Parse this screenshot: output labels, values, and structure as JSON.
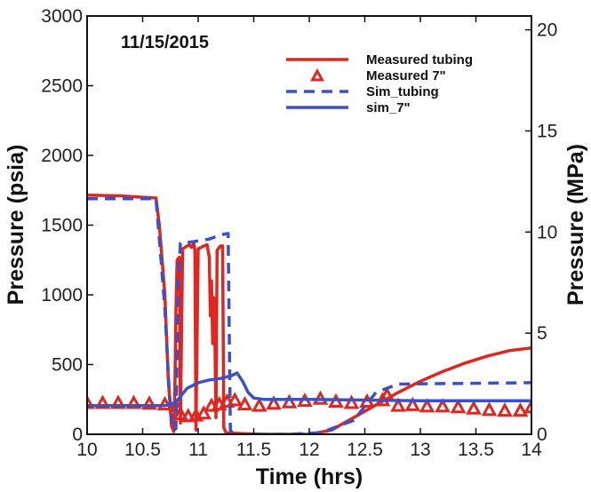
{
  "chart_data": {
    "type": "line",
    "annotation": "11/15/2015",
    "xlabel": "Time (hrs)",
    "ylabel": "Pressure (psia)",
    "y2label": "Pressure (MPa)",
    "xlim": [
      10,
      14
    ],
    "ylim": [
      0,
      3000
    ],
    "y2lim": [
      0,
      20.684
    ],
    "x_ticks": [
      "10",
      "10.5",
      "11",
      "11.5",
      "12",
      "12.5",
      "13",
      "13.5",
      "14"
    ],
    "y_ticks": [
      "0",
      "500",
      "1000",
      "1500",
      "2000",
      "2500",
      "3000"
    ],
    "y2_ticks": [
      "0",
      "5",
      "10",
      "15",
      "20"
    ],
    "legend_position": "top-right",
    "colors": {
      "red": "#e0261e",
      "blue": "#3c50c8"
    },
    "series": [
      {
        "name": "Measured tubing",
        "style": "solid",
        "color": "#e0261e",
        "points": [
          [
            10,
            1715
          ],
          [
            10.3,
            1710
          ],
          [
            10.5,
            1700
          ],
          [
            10.62,
            1695
          ],
          [
            10.65,
            1500
          ],
          [
            10.7,
            1000
          ],
          [
            10.73,
            400
          ],
          [
            10.76,
            60
          ],
          [
            10.78,
            20
          ],
          [
            10.79,
            300
          ],
          [
            10.8,
            900
          ],
          [
            10.81,
            1250
          ],
          [
            10.83,
            1270
          ],
          [
            10.84,
            80
          ],
          [
            10.86,
            1330
          ],
          [
            10.9,
            1350
          ],
          [
            10.92,
            1360
          ],
          [
            10.94,
            1340
          ],
          [
            10.96,
            1370
          ],
          [
            10.97,
            1320
          ],
          [
            10.98,
            30
          ],
          [
            11.0,
            1330
          ],
          [
            11.05,
            1350
          ],
          [
            11.08,
            1360
          ],
          [
            11.1,
            1270
          ],
          [
            11.11,
            850
          ],
          [
            11.12,
            1100
          ],
          [
            11.13,
            650
          ],
          [
            11.14,
            980
          ],
          [
            11.15,
            700
          ],
          [
            11.16,
            120
          ],
          [
            11.17,
            1320
          ],
          [
            11.2,
            1350
          ],
          [
            11.22,
            1350
          ],
          [
            11.23,
            50
          ],
          [
            11.25,
            10
          ],
          [
            11.4,
            5
          ],
          [
            11.6,
            0
          ],
          [
            12.0,
            0
          ],
          [
            12.2,
            30
          ],
          [
            12.4,
            120
          ],
          [
            12.6,
            210
          ],
          [
            12.8,
            300
          ],
          [
            13.0,
            380
          ],
          [
            13.2,
            450
          ],
          [
            13.4,
            510
          ],
          [
            13.6,
            560
          ],
          [
            13.8,
            600
          ],
          [
            14.0,
            620
          ]
        ]
      },
      {
        "name": "Measured 7\"",
        "style": "triangle",
        "color": "#e0261e",
        "points": [
          [
            10,
            220
          ],
          [
            10.14,
            220
          ],
          [
            10.28,
            220
          ],
          [
            10.42,
            220
          ],
          [
            10.56,
            215
          ],
          [
            10.7,
            210
          ],
          [
            10.8,
            195
          ],
          [
            10.84,
            140
          ],
          [
            10.91,
            125
          ],
          [
            10.98,
            130
          ],
          [
            11.05,
            145
          ],
          [
            11.12,
            200
          ],
          [
            11.19,
            210
          ],
          [
            11.26,
            230
          ],
          [
            11.33,
            240
          ],
          [
            11.42,
            210
          ],
          [
            11.55,
            200
          ],
          [
            11.68,
            215
          ],
          [
            11.82,
            225
          ],
          [
            11.96,
            235
          ],
          [
            12.1,
            250
          ],
          [
            12.24,
            230
          ],
          [
            12.38,
            220
          ],
          [
            12.52,
            230
          ],
          [
            12.66,
            240
          ],
          [
            12.7,
            275
          ],
          [
            12.8,
            200
          ],
          [
            12.93,
            205
          ],
          [
            13.06,
            195
          ],
          [
            13.2,
            195
          ],
          [
            13.34,
            190
          ],
          [
            13.48,
            180
          ],
          [
            13.62,
            170
          ],
          [
            13.76,
            165
          ],
          [
            13.9,
            165
          ],
          [
            14.0,
            190
          ]
        ]
      },
      {
        "name": "Sim_tubing",
        "style": "dashed",
        "color": "#3c50c8",
        "points": [
          [
            10,
            1690
          ],
          [
            10.3,
            1690
          ],
          [
            10.62,
            1690
          ],
          [
            10.65,
            1400
          ],
          [
            10.7,
            900
          ],
          [
            10.74,
            300
          ],
          [
            10.77,
            30
          ],
          [
            10.8,
            40
          ],
          [
            10.82,
            1100
          ],
          [
            10.84,
            1370
          ],
          [
            10.95,
            1380
          ],
          [
            11.1,
            1400
          ],
          [
            11.2,
            1430
          ],
          [
            11.27,
            1440
          ],
          [
            11.29,
            30
          ],
          [
            11.32,
            0
          ],
          [
            11.8,
            0
          ],
          [
            12.1,
            10
          ],
          [
            12.4,
            100
          ],
          [
            12.6,
            300
          ],
          [
            12.7,
            330
          ],
          [
            12.8,
            360
          ],
          [
            14.0,
            370
          ]
        ]
      },
      {
        "name": "sim_7\"",
        "style": "solid",
        "color": "#3c50c8",
        "points": [
          [
            10,
            205
          ],
          [
            10.5,
            205
          ],
          [
            10.7,
            205
          ],
          [
            10.75,
            215
          ],
          [
            10.8,
            230
          ],
          [
            10.85,
            280
          ],
          [
            10.9,
            330
          ],
          [
            11.0,
            370
          ],
          [
            11.1,
            390
          ],
          [
            11.2,
            400
          ],
          [
            11.3,
            420
          ],
          [
            11.35,
            440
          ],
          [
            11.4,
            380
          ],
          [
            11.45,
            300
          ],
          [
            11.5,
            260
          ],
          [
            11.6,
            250
          ],
          [
            12.0,
            250
          ],
          [
            12.5,
            245
          ],
          [
            13.0,
            240
          ],
          [
            14.0,
            240
          ]
        ]
      }
    ]
  }
}
